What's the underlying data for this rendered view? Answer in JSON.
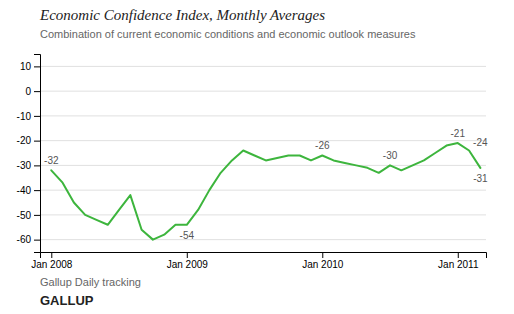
{
  "chart_data": {
    "type": "line",
    "title": "Economic Confidence Index, Monthly Averages",
    "subtitle": "Combination of current economic conditions and economic outlook measures",
    "footnote": "Gallup Daily tracking",
    "brand": "GALLUP",
    "color": "#3db53d",
    "x": [
      0,
      1,
      2,
      3,
      4,
      5,
      6,
      7,
      8,
      9,
      10,
      11,
      12,
      13,
      14,
      15,
      16,
      17,
      18,
      19,
      20,
      21,
      22,
      23,
      24,
      25,
      26,
      27,
      28,
      29,
      30,
      31,
      32,
      33,
      34,
      35,
      36,
      37,
      38
    ],
    "values": [
      -32,
      -37,
      -45,
      -50,
      -52,
      -54,
      -48,
      -42,
      -56,
      -60,
      -58,
      -54,
      -54,
      -48,
      -40,
      -33,
      -28,
      -24,
      -26,
      -28,
      -27,
      -26,
      -26,
      -28,
      -26,
      -28,
      -29,
      -30,
      -31,
      -33,
      -30,
      -32,
      -30,
      -28,
      -25,
      -22,
      -21,
      -24,
      -31
    ],
    "xlim": [
      -1,
      38.5
    ],
    "xticks": [
      {
        "value": 0,
        "label": "Jan 2008"
      },
      {
        "value": 12,
        "label": "Jan 2009"
      },
      {
        "value": 24,
        "label": "Jan 2010"
      },
      {
        "value": 36,
        "label": "Jan 2011"
      }
    ],
    "ylim": [
      -65,
      15
    ],
    "yticks": [
      -60,
      -50,
      -40,
      -30,
      -20,
      -10,
      0,
      10
    ],
    "grid": true,
    "annotations": [
      {
        "text": "-32",
        "x": 0,
        "y": -32
      },
      {
        "text": "-54",
        "x": 12,
        "y": -54
      },
      {
        "text": "-26",
        "x": 24,
        "y": -26
      },
      {
        "text": "-30",
        "x": 30,
        "y": -30
      },
      {
        "text": "-21",
        "x": 36,
        "y": -21
      },
      {
        "text": "-24",
        "x": 37,
        "y": -24
      },
      {
        "text": "-31",
        "x": 38,
        "y": -31
      }
    ]
  }
}
